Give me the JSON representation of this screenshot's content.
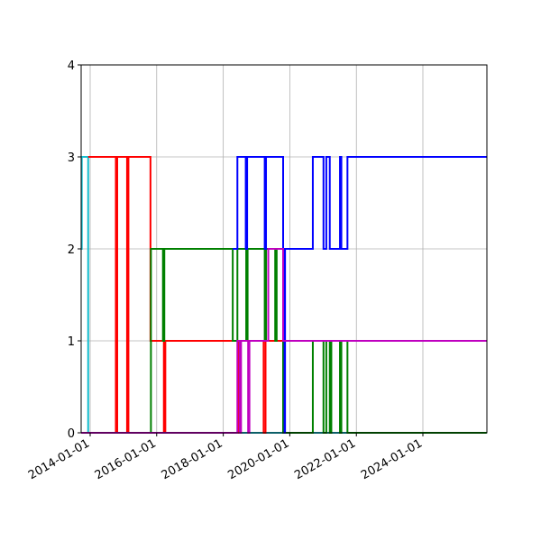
{
  "chart_data": {
    "type": "line",
    "subtype": "step",
    "title": "",
    "xlabel": "",
    "ylabel": "",
    "x_is_date": true,
    "xlim": [
      "2013-09-20",
      "2025-12-01"
    ],
    "ylim": [
      0,
      4
    ],
    "yticks": [
      0,
      1,
      2,
      3,
      4
    ],
    "xticks": [
      "2014-01-01",
      "2016-01-01",
      "2018-01-01",
      "2020-01-01",
      "2022-01-01",
      "2024-01-01"
    ],
    "grid": true,
    "legend": null,
    "series": [
      {
        "name": "cyan",
        "color": "#17becf",
        "points": [
          [
            "2013-09-20",
            2
          ],
          [
            "2013-10-01",
            3
          ],
          [
            "2013-12-10",
            0
          ],
          [
            "2019-03-01",
            0
          ],
          [
            "2025-12-01",
            0
          ]
        ]
      },
      {
        "name": "red",
        "color": "#ff0000",
        "points": [
          [
            "2013-12-10",
            3
          ],
          [
            "2014-10-10",
            0
          ],
          [
            "2014-10-25",
            3
          ],
          [
            "2015-02-10",
            0
          ],
          [
            "2015-02-25",
            3
          ],
          [
            "2015-10-25",
            1
          ],
          [
            "2016-03-20",
            0
          ],
          [
            "2016-04-05",
            1
          ],
          [
            "2018-06-15",
            0
          ],
          [
            "2018-06-25",
            1
          ],
          [
            "2019-03-20",
            0
          ],
          [
            "2019-04-10",
            1
          ],
          [
            "2019-05-10",
            1
          ],
          [
            "2025-12-01",
            1
          ]
        ]
      },
      {
        "name": "green",
        "color": "#008000",
        "points": [
          [
            "2015-10-20",
            0
          ],
          [
            "2015-10-30",
            2
          ],
          [
            "2016-03-10",
            1
          ],
          [
            "2016-03-25",
            2
          ],
          [
            "2018-04-15",
            1
          ],
          [
            "2018-06-05",
            2
          ],
          [
            "2018-09-10",
            1
          ],
          [
            "2018-09-25",
            2
          ],
          [
            "2019-04-01",
            1
          ],
          [
            "2019-04-15",
            2
          ],
          [
            "2019-07-25",
            1
          ],
          [
            "2019-08-10",
            2
          ],
          [
            "2019-10-20",
            0
          ],
          [
            "2019-11-05",
            0
          ],
          [
            "2020-08-01",
            0
          ],
          [
            "2020-09-10",
            1
          ],
          [
            "2021-01-05",
            0
          ],
          [
            "2021-02-05",
            1
          ],
          [
            "2021-03-15",
            0
          ],
          [
            "2021-04-01",
            1
          ],
          [
            "2021-07-05",
            0
          ],
          [
            "2021-07-20",
            1
          ],
          [
            "2021-09-25",
            0
          ],
          [
            "2025-12-01",
            0
          ]
        ]
      },
      {
        "name": "blue",
        "color": "#0000ff",
        "points": [
          [
            "2018-04-15",
            2
          ],
          [
            "2018-06-05",
            3
          ],
          [
            "2018-09-05",
            2
          ],
          [
            "2018-09-20",
            3
          ],
          [
            "2019-04-01",
            2
          ],
          [
            "2019-04-15",
            3
          ],
          [
            "2019-10-20",
            2
          ],
          [
            "2019-11-05",
            0
          ],
          [
            "2019-11-10",
            2
          ],
          [
            "2020-08-01",
            2
          ],
          [
            "2020-09-10",
            3
          ],
          [
            "2021-01-05",
            2
          ],
          [
            "2021-02-05",
            3
          ],
          [
            "2021-03-15",
            2
          ],
          [
            "2021-07-05",
            3
          ],
          [
            "2021-07-20",
            2
          ],
          [
            "2021-09-25",
            3
          ],
          [
            "2025-12-01",
            3
          ]
        ]
      },
      {
        "name": "magenta",
        "color": "#bf00bf",
        "points": [
          [
            "2013-09-20",
            0
          ],
          [
            "2018-04-15",
            0
          ],
          [
            "2018-06-05",
            1
          ],
          [
            "2018-07-01",
            0
          ],
          [
            "2018-07-15",
            1
          ],
          [
            "2018-10-01",
            0
          ],
          [
            "2018-10-15",
            1
          ],
          [
            "2019-05-10",
            2
          ],
          [
            "2019-10-20",
            1
          ],
          [
            "2025-12-01",
            1
          ]
        ]
      }
    ]
  }
}
